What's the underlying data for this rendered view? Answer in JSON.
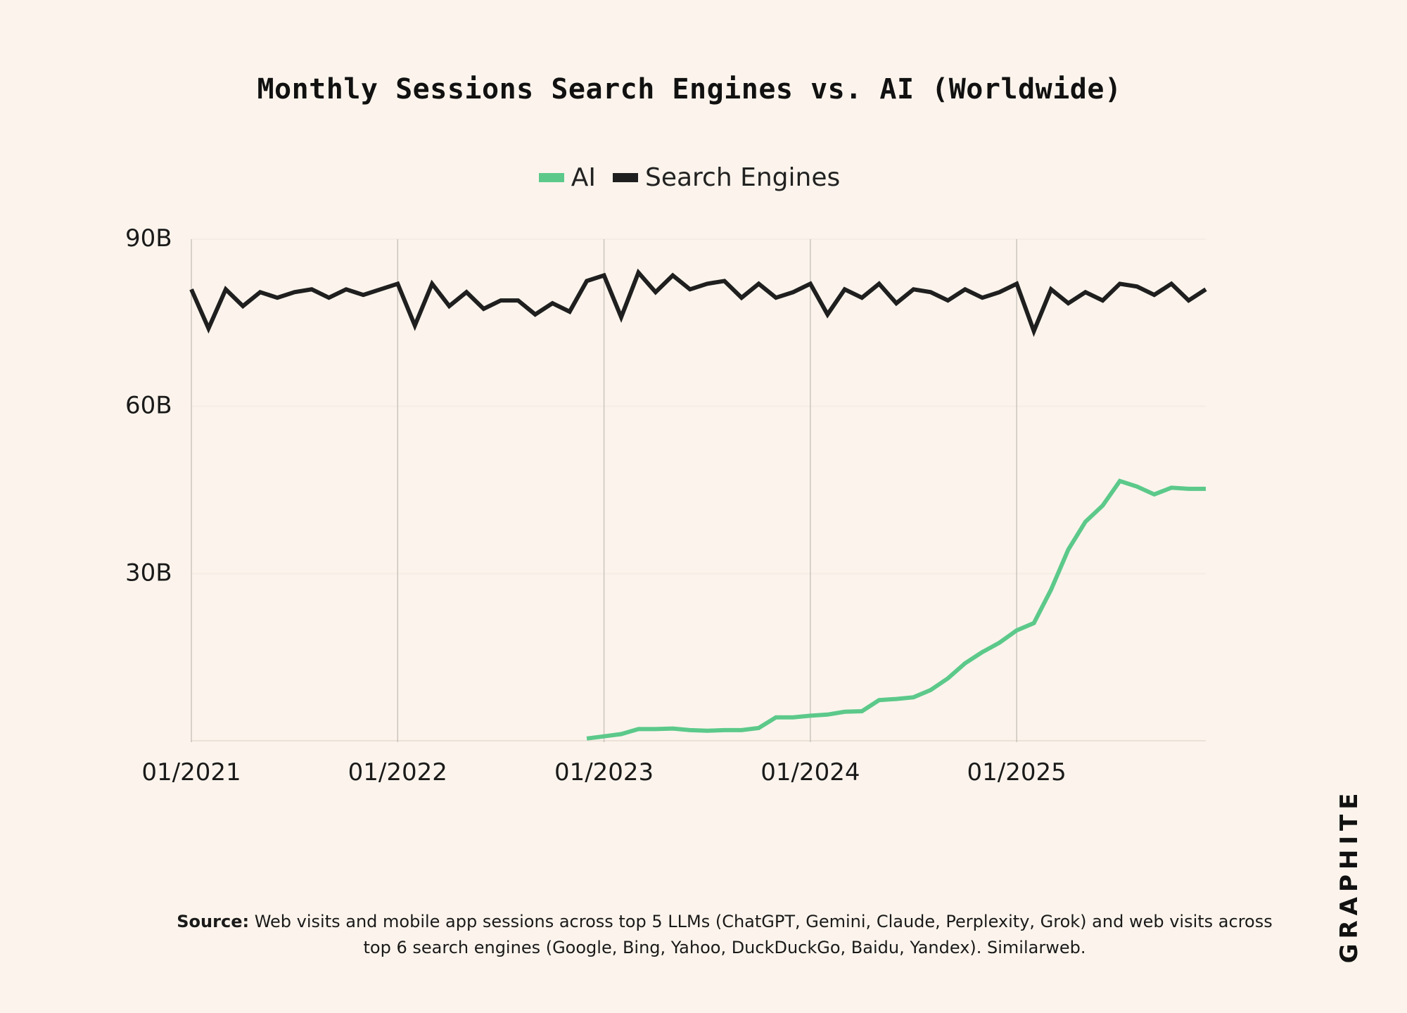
{
  "chart_data": {
    "type": "line",
    "title": "Monthly Sessions Search Engines vs. AI (Worldwide)",
    "xlabel": "",
    "ylabel": "",
    "x_ticks": [
      "01/2021",
      "01/2022",
      "01/2023",
      "01/2024",
      "01/2025"
    ],
    "y_ticks": [
      "90B",
      "60B",
      "30B"
    ],
    "ylim": [
      0,
      90
    ],
    "legend_position": "top-center",
    "grid": "vertical lines at year ticks",
    "start_month": "01/2021",
    "series": [
      {
        "name": "AI",
        "color": "#5cc98a",
        "start_month": "12/2022",
        "values": [
          0.4,
          0.8,
          1.2,
          2.1,
          2.1,
          2.2,
          1.9,
          1.8,
          1.9,
          1.9,
          2.3,
          4.2,
          4.2,
          4.5,
          4.7,
          5.2,
          5.3,
          7.3,
          7.5,
          7.8,
          9.1,
          11.2,
          13.9,
          15.9,
          17.6,
          19.8,
          21.1,
          27.1,
          34.3,
          39.3,
          42.2,
          46.6,
          45.6,
          44.2,
          45.4,
          45.2,
          45.2
        ]
      },
      {
        "name": "Search Engines",
        "color": "#1f1f1f",
        "values": [
          81,
          74,
          81,
          78,
          80.5,
          79.5,
          80.5,
          81,
          79.5,
          81,
          80,
          81,
          82,
          74.5,
          82,
          78,
          80.5,
          77.5,
          79,
          79,
          76.5,
          78.5,
          77,
          82.5,
          83.5,
          76,
          84,
          80.5,
          83.5,
          81,
          82,
          82.5,
          79.5,
          82,
          79.5,
          80.5,
          82,
          76.5,
          81,
          79.5,
          82,
          78.5,
          81,
          80.5,
          79,
          81,
          79.5,
          80.5,
          82,
          73.5,
          81,
          78.5,
          80.5,
          79,
          82,
          81.5,
          80,
          82,
          79,
          81
        ]
      }
    ]
  },
  "source": {
    "label": "Source:",
    "text": "Web visits and mobile app sessions across top 5 LLMs (ChatGPT, Gemini, Claude, Perplexity, Grok) and web visits across top 6 search engines (Google, Bing, Yahoo, DuckDuckGo, Baidu, Yandex). Similarweb."
  },
  "brand": {
    "logo_text": "GRAPHITE"
  }
}
